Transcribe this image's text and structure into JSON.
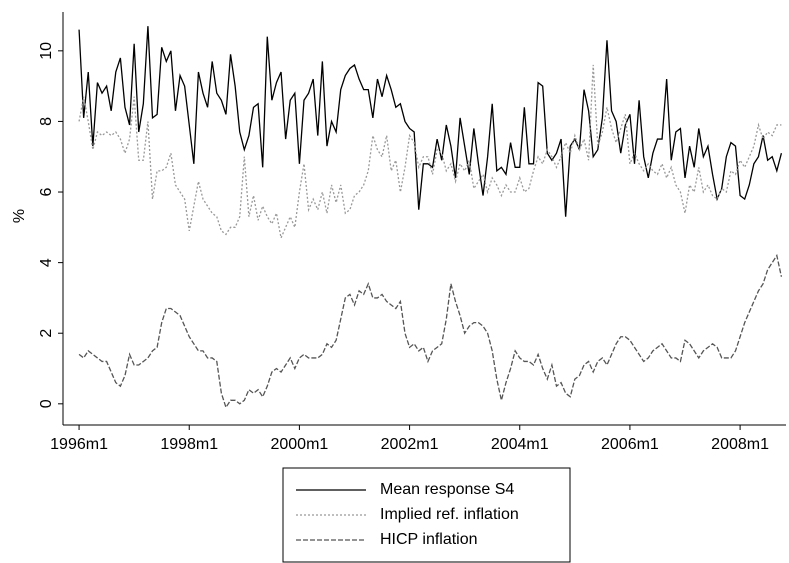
{
  "chart_data": {
    "type": "line",
    "ylabel": "%",
    "x": [
      432,
      433,
      434,
      435,
      436,
      437,
      438,
      439,
      440,
      441,
      442,
      443,
      444,
      445,
      446,
      447,
      448,
      449,
      450,
      451,
      452,
      453,
      454,
      455,
      456,
      457,
      458,
      459,
      460,
      461,
      462,
      463,
      464,
      465,
      466,
      467,
      468,
      469,
      470,
      471,
      472,
      473,
      474,
      475,
      476,
      477,
      478,
      479,
      480,
      481,
      482,
      483,
      484,
      485,
      486,
      487,
      488,
      489,
      490,
      491,
      492,
      493,
      494,
      495,
      496,
      497,
      498,
      499,
      500,
      501,
      502,
      503,
      504,
      505,
      506,
      507,
      508,
      509,
      510,
      511,
      512,
      513,
      514,
      515,
      516,
      517,
      518,
      519,
      520,
      521,
      522,
      523,
      524,
      525,
      526,
      527,
      528,
      529,
      530,
      531,
      532,
      533,
      534,
      535,
      536,
      537,
      538,
      539,
      540,
      541,
      542,
      543,
      544,
      545,
      546,
      547,
      548,
      549,
      550,
      551,
      552,
      553,
      554,
      555,
      556,
      557,
      558,
      559,
      560,
      561,
      562,
      563,
      564,
      565,
      566,
      567,
      568,
      569,
      570,
      571,
      572,
      573,
      574,
      575,
      576,
      577,
      578,
      579,
      580,
      581,
      582,
      583,
      584,
      585
    ],
    "series": [
      {
        "name": "Mean response S4",
        "color": "#000000",
        "dash": "solid",
        "values": [
          10.6,
          8.1,
          9.4,
          7.3,
          9.1,
          8.8,
          9.0,
          8.3,
          9.4,
          9.8,
          8.4,
          7.9,
          10.2,
          7.7,
          8.5,
          10.7,
          8.1,
          8.2,
          10.1,
          9.7,
          10.0,
          8.3,
          9.3,
          9.0,
          7.9,
          6.8,
          9.4,
          8.8,
          8.4,
          9.7,
          8.8,
          8.6,
          8.2,
          9.9,
          9.0,
          7.7,
          7.2,
          7.6,
          8.4,
          8.5,
          6.7,
          10.4,
          8.6,
          9.1,
          9.4,
          7.5,
          8.6,
          8.8,
          6.8,
          8.6,
          8.8,
          9.2,
          7.6,
          9.7,
          7.3,
          8.0,
          7.7,
          8.9,
          9.3,
          9.5,
          9.6,
          9.2,
          8.9,
          8.9,
          8.1,
          9.2,
          8.7,
          9.3,
          8.9,
          8.4,
          8.5,
          8.0,
          7.8,
          7.7,
          5.5,
          6.8,
          6.8,
          6.7,
          7.5,
          6.9,
          7.9,
          7.3,
          6.4,
          8.1,
          7.3,
          6.5,
          7.8,
          6.8,
          5.9,
          7.0,
          8.5,
          6.6,
          6.7,
          6.5,
          7.4,
          6.7,
          6.7,
          8.4,
          6.8,
          6.8,
          9.1,
          9.0,
          7.1,
          6.9,
          7.1,
          7.5,
          5.3,
          7.3,
          7.5,
          7.2,
          8.9,
          8.3,
          7.0,
          7.2,
          8.1,
          10.3,
          8.3,
          8.0,
          7.1,
          7.9,
          8.2,
          6.8,
          8.6,
          7.0,
          6.4,
          7.1,
          7.5,
          7.5,
          9.2,
          6.9,
          7.7,
          7.8,
          6.4,
          7.3,
          6.7,
          7.8,
          7.0,
          7.3,
          6.5,
          5.8,
          6.1,
          7.0,
          7.4,
          7.3,
          5.9,
          5.8,
          6.2,
          6.8,
          7.0,
          7.6,
          6.9,
          7.0,
          6.6,
          7.1
        ]
      },
      {
        "name": "Implied ref. inflation",
        "color": "#999999",
        "dash": "dotted",
        "values": [
          8.0,
          8.7,
          8.0,
          7.2,
          7.7,
          7.6,
          7.7,
          7.6,
          7.7,
          7.5,
          7.1,
          7.5,
          8.7,
          6.9,
          6.9,
          8.0,
          5.8,
          6.6,
          6.6,
          6.7,
          7.1,
          6.2,
          6.0,
          5.8,
          4.9,
          5.6,
          6.3,
          5.8,
          5.6,
          5.4,
          5.3,
          4.9,
          4.8,
          5.0,
          5.0,
          5.3,
          7.0,
          5.3,
          5.9,
          5.2,
          5.6,
          5.3,
          5.1,
          5.4,
          4.7,
          5.0,
          5.3,
          5.0,
          6.0,
          6.8,
          5.5,
          5.8,
          5.5,
          6.0,
          5.4,
          6.2,
          5.7,
          6.2,
          5.4,
          5.5,
          5.9,
          6.0,
          6.2,
          6.6,
          7.6,
          7.2,
          7.0,
          7.6,
          6.6,
          6.9,
          6.0,
          6.7,
          7.6,
          7.4,
          6.7,
          7.0,
          7.0,
          6.5,
          7.2,
          7.1,
          6.6,
          6.8,
          6.3,
          6.8,
          6.6,
          6.9,
          6.1,
          6.3,
          6.5,
          6.0,
          6.4,
          6.2,
          5.9,
          6.2,
          6.0,
          6.0,
          6.4,
          6.0,
          6.1,
          6.6,
          7.0,
          6.8,
          7.2,
          7.0,
          6.7,
          7.0,
          7.4,
          7.1,
          7.6,
          7.2,
          7.5,
          6.9,
          9.6,
          7.3,
          7.7,
          8.4,
          7.8,
          7.4,
          7.8,
          8.2,
          6.8,
          7.1,
          6.8,
          6.6,
          6.8,
          6.6,
          6.5,
          6.8,
          6.4,
          6.7,
          6.2,
          6.0,
          5.4,
          6.2,
          6.0,
          6.7,
          6.0,
          6.2,
          5.9,
          5.8,
          6.1,
          6.0,
          6.6,
          6.5,
          6.9,
          6.7,
          7.0,
          7.3,
          7.9,
          7.5,
          7.7,
          7.6,
          7.9,
          7.9
        ]
      },
      {
        "name": "HICP inflation",
        "color": "#555555",
        "dash": "dashed",
        "values": [
          1.4,
          1.3,
          1.5,
          1.4,
          1.3,
          1.2,
          1.2,
          0.9,
          0.6,
          0.5,
          0.8,
          1.4,
          1.1,
          1.1,
          1.2,
          1.3,
          1.5,
          1.6,
          2.3,
          2.7,
          2.7,
          2.6,
          2.5,
          2.2,
          1.9,
          1.7,
          1.5,
          1.5,
          1.3,
          1.3,
          1.2,
          0.3,
          -0.1,
          0.1,
          0.1,
          0.0,
          0.1,
          0.4,
          0.3,
          0.4,
          0.2,
          0.5,
          0.9,
          1.0,
          0.9,
          1.1,
          1.3,
          1.0,
          1.3,
          1.4,
          1.3,
          1.3,
          1.3,
          1.4,
          1.7,
          1.6,
          1.8,
          2.4,
          3.0,
          3.1,
          2.8,
          3.2,
          3.1,
          3.4,
          3.0,
          3.0,
          3.1,
          2.9,
          2.8,
          2.7,
          2.9,
          2.0,
          1.6,
          1.7,
          1.5,
          1.6,
          1.2,
          1.5,
          1.6,
          1.7,
          2.4,
          3.4,
          2.9,
          2.5,
          2.0,
          2.2,
          2.3,
          2.3,
          2.2,
          2.0,
          1.5,
          0.7,
          0.1,
          0.6,
          1.0,
          1.5,
          1.3,
          1.2,
          1.2,
          1.1,
          1.4,
          1.0,
          0.7,
          1.1,
          0.5,
          0.6,
          0.3,
          0.2,
          0.7,
          0.8,
          1.1,
          1.2,
          0.9,
          1.2,
          1.3,
          1.1,
          1.4,
          1.7,
          1.9,
          1.9,
          1.8,
          1.6,
          1.4,
          1.2,
          1.3,
          1.5,
          1.6,
          1.7,
          1.5,
          1.3,
          1.3,
          1.2,
          1.8,
          1.7,
          1.5,
          1.3,
          1.5,
          1.6,
          1.7,
          1.6,
          1.3,
          1.3,
          1.3,
          1.5,
          1.9,
          2.3,
          2.6,
          2.9,
          3.2,
          3.4,
          3.8,
          4.0,
          4.2,
          3.6
        ]
      }
    ],
    "xlim": [
      428.5,
      586
    ],
    "ylim": [
      -0.6,
      11.1
    ],
    "xticks": [
      {
        "value": 432,
        "label": "1996m1"
      },
      {
        "value": 456,
        "label": "1998m1"
      },
      {
        "value": 480,
        "label": "2000m1"
      },
      {
        "value": 504,
        "label": "2002m1"
      },
      {
        "value": 528,
        "label": "2004m1"
      },
      {
        "value": 552,
        "label": "2006m1"
      },
      {
        "value": 576,
        "label": "2008m1"
      }
    ],
    "yticks": [
      0,
      2,
      4,
      6,
      8,
      10
    ],
    "grid": false,
    "legend": "bottom"
  }
}
